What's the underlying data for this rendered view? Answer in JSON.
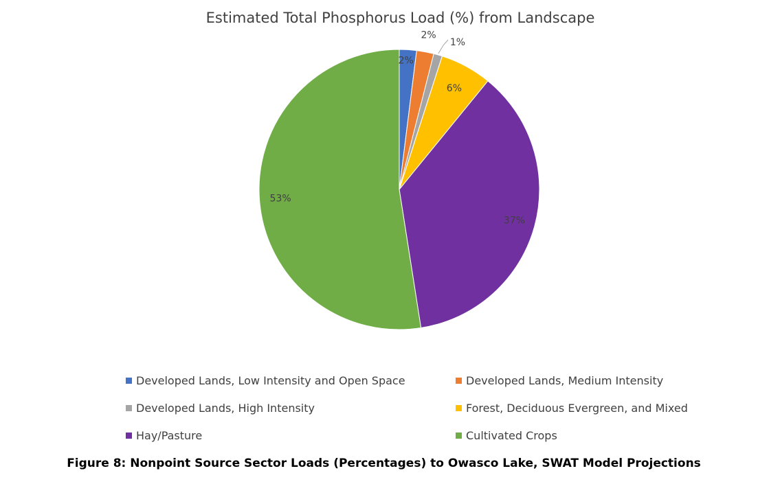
{
  "chart_data": {
    "type": "pie",
    "title": "Estimated Total Phosphorus Load (%) from Landscape",
    "categories": [
      "Developed Lands, Low Intensity and Open Space",
      "Developed Lands, Medium Intensity",
      "Developed Lands, High Intensity",
      "Forest, Deciduous Evergreen, and Mixed",
      "Hay/Pasture",
      "Cultivated Crops"
    ],
    "values": [
      2,
      2,
      1,
      6,
      37,
      53
    ],
    "data_labels": [
      "2%",
      "2%",
      "1%",
      "6%",
      "37%",
      "53%"
    ],
    "colors": [
      "#4472c4",
      "#ed7d31",
      "#a5a5a5",
      "#ffc000",
      "#7030a0",
      "#70ad47"
    ],
    "legend_position": "bottom",
    "start_angle": "12 o'clock, clockwise"
  },
  "caption": "Figure 8: Nonpoint Source Sector Loads (Percentages) to Owasco Lake, SWAT Model Projections"
}
